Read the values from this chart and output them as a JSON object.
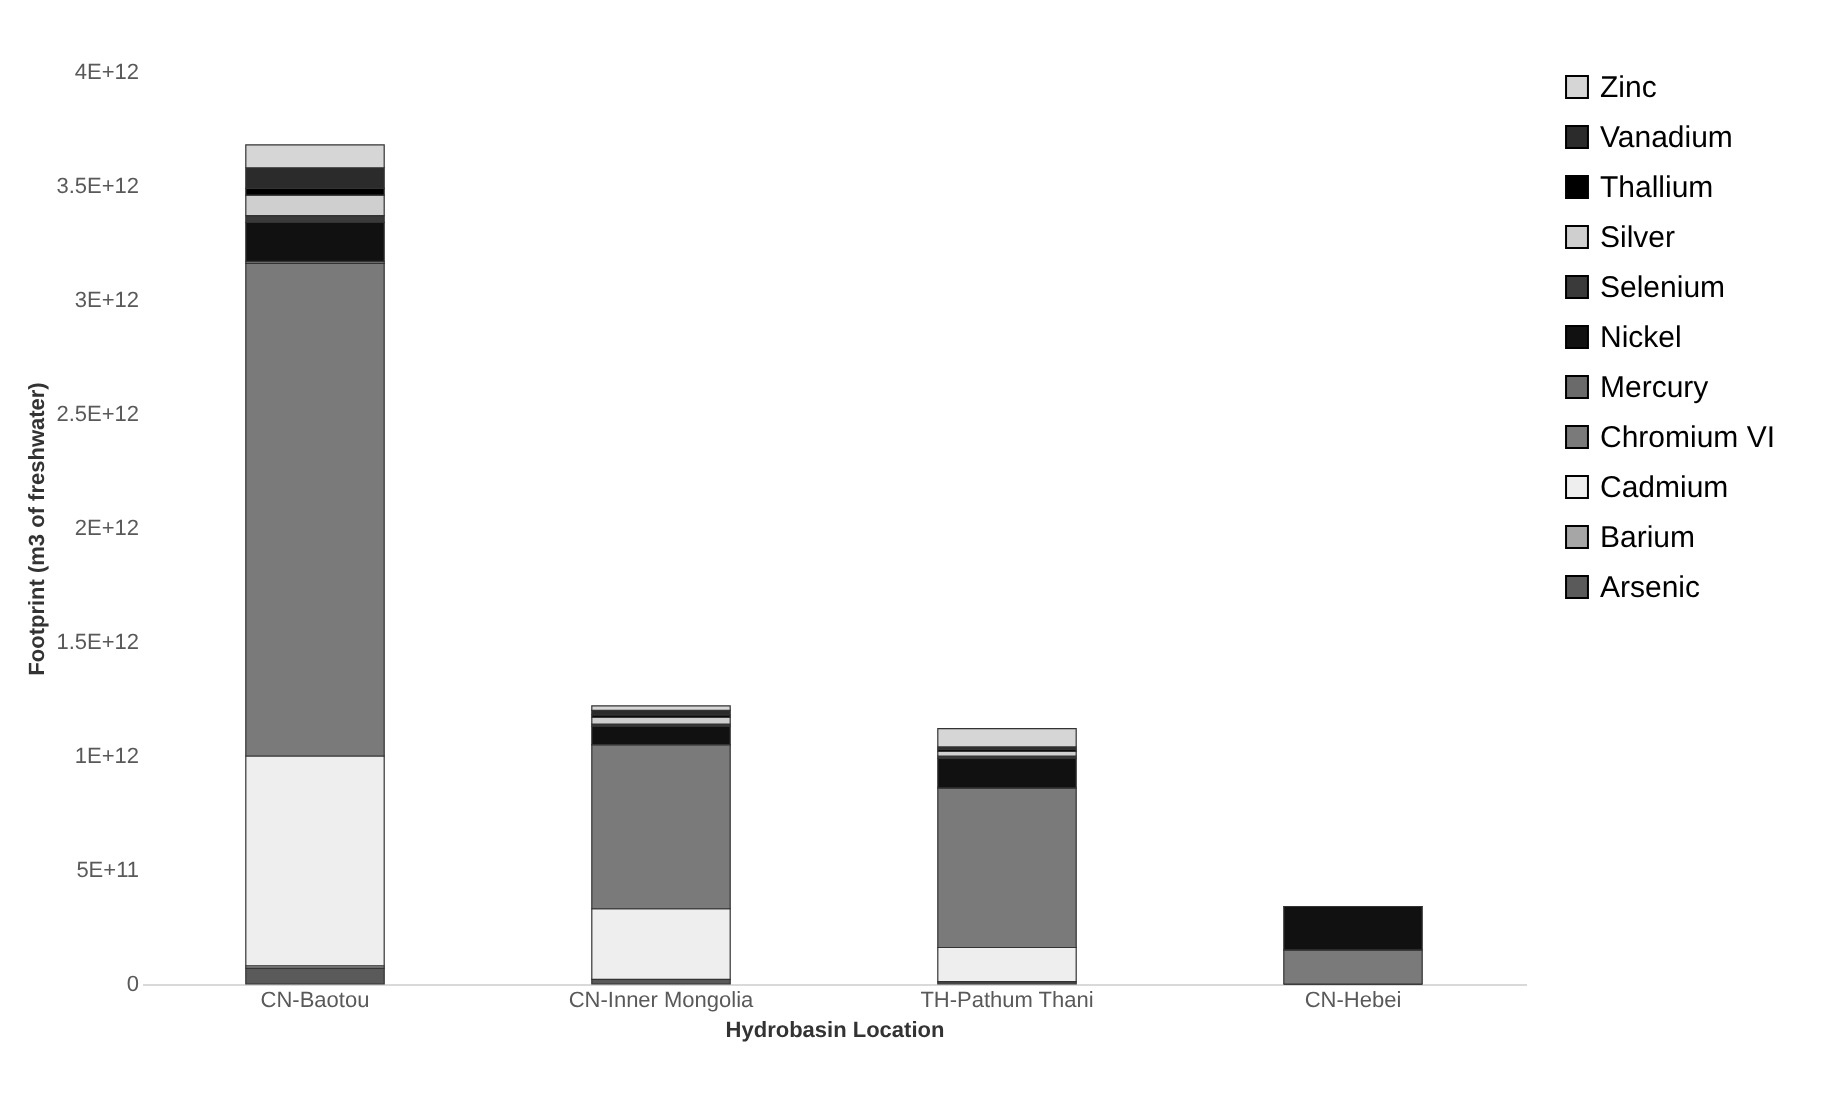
{
  "chart_data": {
    "type": "bar",
    "stacked": true,
    "xlabel": "Hydrobasin Location",
    "ylabel": "Footprint (m3 of freshwater)",
    "categories": [
      "CN-Baotou",
      "CN-Inner Mongolia",
      "TH-Pathum Thani",
      "CN-Hebei"
    ],
    "series": [
      {
        "name": "Arsenic",
        "color": "#5a5a5a",
        "values": [
          70000000000.0,
          20000000000.0,
          10000000000.0,
          0
        ]
      },
      {
        "name": "Barium",
        "color": "#a6a6a6",
        "values": [
          10000000000.0,
          0,
          0,
          0
        ]
      },
      {
        "name": "Cadmium",
        "color": "#eeeeee",
        "values": [
          920000000000.0,
          310000000000.0,
          150000000000.0,
          0
        ]
      },
      {
        "name": "Chromium VI",
        "color": "#7a7a7a",
        "values": [
          2160000000000.0,
          720000000000.0,
          700000000000.0,
          150000000000.0
        ]
      },
      {
        "name": "Mercury",
        "color": "#6a6a6a",
        "values": [
          10000000000.0,
          0,
          0,
          0
        ]
      },
      {
        "name": "Nickel",
        "color": "#111111",
        "values": [
          170000000000.0,
          80000000000.0,
          130000000000.0,
          190000000000.0
        ]
      },
      {
        "name": "Selenium",
        "color": "#3a3a3a",
        "values": [
          30000000000.0,
          10000000000.0,
          10000000000.0,
          0
        ]
      },
      {
        "name": "Silver",
        "color": "#cfcfcf",
        "values": [
          90000000000.0,
          30000000000.0,
          20000000000.0,
          0
        ]
      },
      {
        "name": "Thallium",
        "color": "#000000",
        "values": [
          30000000000.0,
          10000000000.0,
          10000000000.0,
          0
        ]
      },
      {
        "name": "Vanadium",
        "color": "#2b2b2b",
        "values": [
          90000000000.0,
          20000000000.0,
          10000000000.0,
          0
        ]
      },
      {
        "name": "Zinc",
        "color": "#d6d6d6",
        "values": [
          100000000000.0,
          20000000000.0,
          80000000000.0,
          0
        ]
      }
    ],
    "ylim": [
      0,
      4000000000000.0
    ],
    "yticks": [
      0,
      {
        "value": 500000000000.0,
        "label": "5E+11"
      },
      {
        "value": 1000000000000.0,
        "label": "1E+12"
      },
      {
        "value": 1500000000000.0,
        "label": "1.5E+12"
      },
      {
        "value": 2000000000000.0,
        "label": "2E+12"
      },
      {
        "value": 2500000000000.0,
        "label": "2.5E+12"
      },
      {
        "value": 3000000000000.0,
        "label": "3E+12"
      },
      {
        "value": 3500000000000.0,
        "label": "3.5E+12"
      },
      {
        "value": 4000000000000.0,
        "label": "4E+12"
      }
    ],
    "grid": false,
    "legend": "right"
  }
}
